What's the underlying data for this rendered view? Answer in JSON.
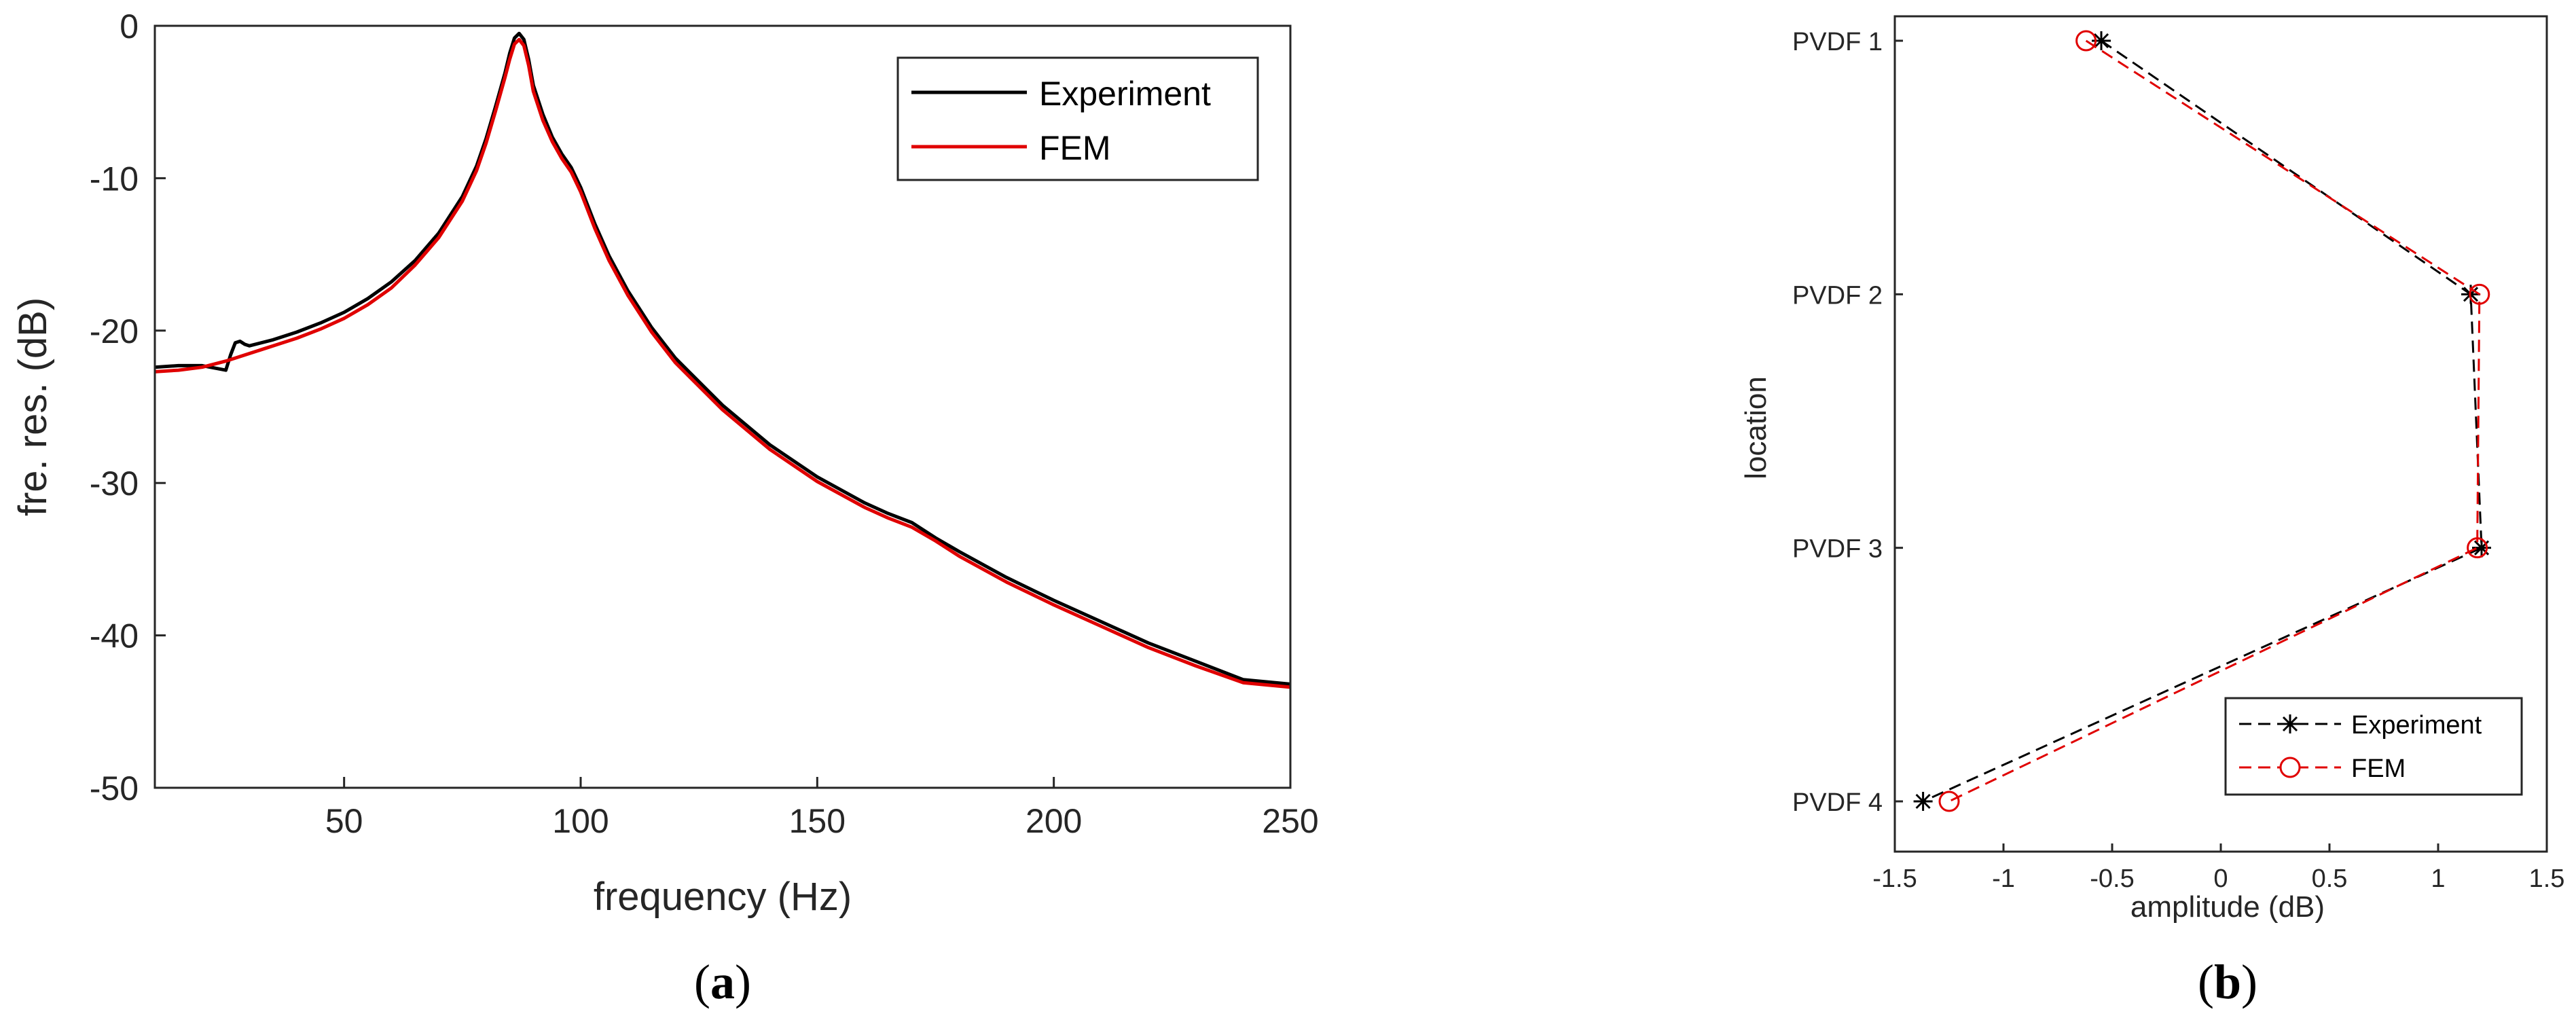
{
  "colors": {
    "experiment": "#000000",
    "fem": "#e00000",
    "axis": "#262626"
  },
  "chart_data": [
    {
      "type": "line",
      "panel_label": "(a)",
      "panel_label_parts": {
        "open": "(",
        "letter": "a",
        "close": ")"
      },
      "xlabel": "frequency (Hz)",
      "ylabel": "fre. res. (dB)",
      "xlim": [
        10,
        250
      ],
      "ylim": [
        -50,
        0
      ],
      "xticks": [
        50,
        100,
        150,
        200,
        250
      ],
      "yticks": [
        0,
        -10,
        -20,
        -30,
        -40,
        -50
      ],
      "grid": false,
      "legend_position": "top-right",
      "series": [
        {
          "name": "Experiment",
          "color": "#000000",
          "x": [
            10,
            15,
            20,
            25,
            26,
            27,
            28,
            29,
            30,
            35,
            40,
            45,
            50,
            55,
            60,
            65,
            70,
            75,
            78,
            80,
            82,
            84,
            85,
            86,
            87,
            88,
            89,
            90,
            92,
            94,
            96,
            98,
            100,
            103,
            106,
            110,
            115,
            120,
            130,
            140,
            150,
            160,
            165,
            170,
            175,
            180,
            190,
            200,
            210,
            220,
            230,
            240,
            250
          ],
          "y": [
            -22.4,
            -22.3,
            -22.3,
            -22.6,
            -21.6,
            -20.8,
            -20.7,
            -20.9,
            -21.0,
            -20.6,
            -20.1,
            -19.5,
            -18.8,
            -17.9,
            -16.8,
            -15.4,
            -13.6,
            -11.2,
            -9.2,
            -7.4,
            -5.3,
            -3.1,
            -1.8,
            -0.8,
            -0.5,
            -0.9,
            -2.2,
            -3.9,
            -5.8,
            -7.3,
            -8.4,
            -9.3,
            -10.6,
            -13.0,
            -15.1,
            -17.4,
            -19.8,
            -21.8,
            -24.9,
            -27.5,
            -29.6,
            -31.3,
            -32.0,
            -32.6,
            -33.6,
            -34.5,
            -36.2,
            -37.7,
            -39.1,
            -40.5,
            -41.7,
            -42.9,
            -43.2
          ]
        },
        {
          "name": "FEM",
          "color": "#e00000",
          "x": [
            10,
            15,
            20,
            25,
            30,
            35,
            40,
            45,
            50,
            55,
            60,
            65,
            70,
            75,
            78,
            80,
            82,
            84,
            85,
            86,
            87,
            88,
            89,
            90,
            92,
            94,
            96,
            98,
            100,
            103,
            106,
            110,
            115,
            120,
            130,
            140,
            150,
            160,
            165,
            170,
            175,
            180,
            190,
            200,
            210,
            220,
            230,
            240,
            250
          ],
          "y": [
            -22.7,
            -22.6,
            -22.4,
            -22.0,
            -21.5,
            -21.0,
            -20.5,
            -19.9,
            -19.2,
            -18.3,
            -17.2,
            -15.7,
            -13.9,
            -11.5,
            -9.5,
            -7.7,
            -5.6,
            -3.4,
            -2.2,
            -1.2,
            -0.9,
            -1.3,
            -2.6,
            -4.3,
            -6.2,
            -7.6,
            -8.7,
            -9.6,
            -10.9,
            -13.3,
            -15.4,
            -17.7,
            -20.1,
            -22.1,
            -25.2,
            -27.8,
            -29.9,
            -31.6,
            -32.3,
            -32.9,
            -33.8,
            -34.8,
            -36.5,
            -38.0,
            -39.4,
            -40.8,
            -42.0,
            -43.1,
            -43.4
          ]
        }
      ]
    },
    {
      "type": "line",
      "panel_label": "(b)",
      "panel_label_parts": {
        "open": "(",
        "letter": "b",
        "close": ")"
      },
      "xlabel": "amplitude (dB)",
      "ylabel": "location",
      "xlim": [
        -1.5,
        1.5
      ],
      "xticks": [
        -1.5,
        -1,
        -0.5,
        0,
        0.5,
        1,
        1.5
      ],
      "xtick_labels": [
        "-1.5",
        "-1",
        "-0.5",
        "0",
        "0.5",
        "1",
        "1.5"
      ],
      "categories": [
        "PVDF 1",
        "PVDF 2",
        "PVDF 3",
        "PVDF 4"
      ],
      "grid": false,
      "legend_position": "bottom-right",
      "series": [
        {
          "name": "Experiment",
          "color": "#000000",
          "marker": "asterisk",
          "line": "dashed",
          "values": [
            -0.55,
            1.15,
            1.2,
            -1.37
          ]
        },
        {
          "name": "FEM",
          "color": "#e00000",
          "marker": "circle",
          "line": "dashed",
          "values": [
            -0.62,
            1.19,
            1.18,
            -1.25
          ]
        }
      ]
    }
  ]
}
